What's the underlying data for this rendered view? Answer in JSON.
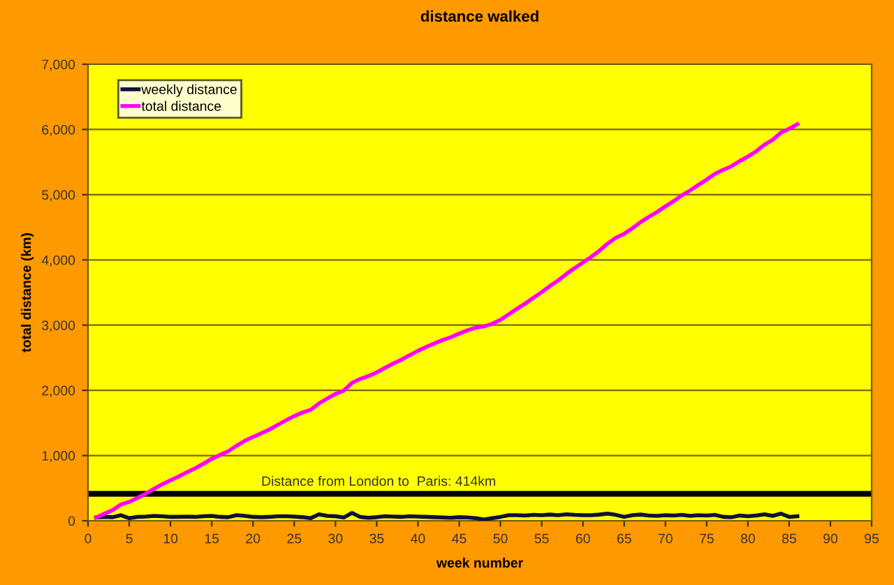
{
  "chart_data": {
    "type": "line",
    "title": "distance walked",
    "xlabel": "week number",
    "ylabel": "total distance (km)",
    "x": [
      1,
      2,
      3,
      4,
      5,
      6,
      7,
      8,
      9,
      10,
      11,
      12,
      13,
      14,
      15,
      16,
      17,
      18,
      19,
      20,
      21,
      22,
      23,
      24,
      25,
      26,
      27,
      28,
      29,
      30,
      31,
      32,
      33,
      34,
      35,
      36,
      37,
      38,
      39,
      40,
      41,
      42,
      43,
      44,
      45,
      46,
      47,
      48,
      49,
      50,
      51,
      52,
      53,
      54,
      55,
      56,
      57,
      58,
      59,
      60,
      61,
      62,
      63,
      64,
      65,
      66,
      67,
      68,
      69,
      70,
      71,
      72,
      73,
      74,
      75,
      76,
      77,
      78,
      79,
      80,
      81,
      82,
      83,
      84,
      85,
      86
    ],
    "series": [
      {
        "name": "weekly distance",
        "color": "#10103a",
        "values": [
          50,
          60,
          55,
          85,
          40,
          60,
          65,
          75,
          70,
          60,
          60,
          65,
          60,
          70,
          75,
          60,
          55,
          85,
          75,
          60,
          55,
          60,
          70,
          70,
          65,
          55,
          40,
          100,
          75,
          70,
          50,
          120,
          60,
          45,
          55,
          70,
          65,
          60,
          70,
          65,
          60,
          55,
          50,
          45,
          55,
          50,
          40,
          20,
          40,
          60,
          85,
          85,
          80,
          90,
          85,
          95,
          85,
          100,
          90,
          85,
          85,
          95,
          110,
          90,
          60,
          85,
          95,
          80,
          75,
          85,
          80,
          90,
          75,
          85,
          80,
          90,
          60,
          55,
          80,
          70,
          80,
          100,
          75,
          110,
          60,
          70
        ]
      },
      {
        "name": "total distance",
        "color": "#ff00ff",
        "values": [
          50,
          110,
          165,
          250,
          290,
          350,
          415,
          490,
          560,
          620,
          680,
          745,
          805,
          875,
          950,
          1010,
          1065,
          1150,
          1225,
          1285,
          1340,
          1400,
          1470,
          1540,
          1605,
          1660,
          1700,
          1800,
          1875,
          1945,
          1995,
          2115,
          2175,
          2220,
          2275,
          2345,
          2410,
          2470,
          2540,
          2605,
          2665,
          2720,
          2770,
          2815,
          2870,
          2920,
          2960,
          2980,
          3020,
          3080,
          3165,
          3250,
          3330,
          3420,
          3505,
          3600,
          3685,
          3785,
          3875,
          3960,
          4045,
          4140,
          4250,
          4340,
          4400,
          4485,
          4580,
          4660,
          4735,
          4820,
          4900,
          4990,
          5065,
          5150,
          5230,
          5320,
          5380,
          5435,
          5515,
          5585,
          5665,
          5765,
          5840,
          5950,
          6010,
          6080
        ]
      }
    ],
    "ref_lines": [
      {
        "axis": "y",
        "value": 414,
        "label": "Distance from London to  Paris: 414km",
        "color": "#000000"
      }
    ],
    "xlim": [
      0,
      95
    ],
    "xticks": [
      0,
      5,
      10,
      15,
      20,
      25,
      30,
      35,
      40,
      45,
      50,
      55,
      60,
      65,
      70,
      75,
      80,
      85,
      90,
      95
    ],
    "ylim": [
      0,
      7000
    ],
    "yticks": [
      {
        "value": 0,
        "label": "0"
      },
      {
        "value": 1000,
        "label": "1,000"
      },
      {
        "value": 2000,
        "label": "2,000"
      },
      {
        "value": 3000,
        "label": "3,000"
      },
      {
        "value": 4000,
        "label": "4,000"
      },
      {
        "value": 5000,
        "label": "5,000"
      },
      {
        "value": 6000,
        "label": "6,000"
      },
      {
        "value": 7000,
        "label": "7,000"
      }
    ],
    "grid": "y",
    "legend": "top left",
    "marker": "none",
    "line_style": "solid"
  }
}
